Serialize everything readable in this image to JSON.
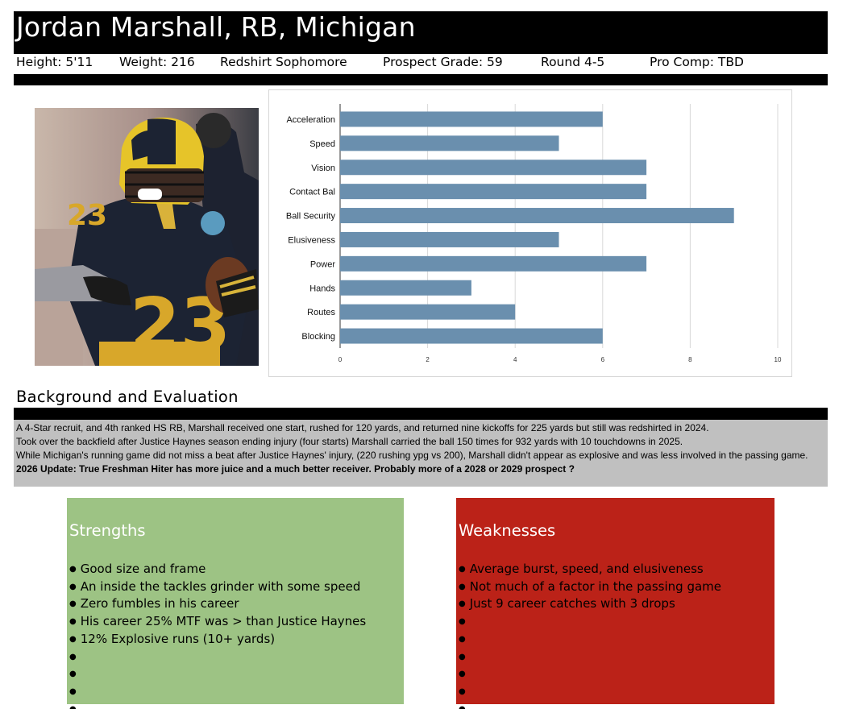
{
  "header": {
    "title": "Jordan Marshall, RB, Michigan",
    "height": "Height: 5'11",
    "weight": "Weight: 216",
    "class_year": "Redshirt Sophomore",
    "prospect_grade": "Prospect Grade: 59",
    "round": "Round 4-5",
    "pro_comp": "Pro Comp: TBD"
  },
  "colors": {
    "bar": "#6a8fae",
    "strengths_bg": "#9dc384",
    "weaknesses_bg": "#bb2218",
    "background_box": "#c0c0c0"
  },
  "chart_data": {
    "type": "bar",
    "orientation": "horizontal",
    "categories": [
      "Acceleration",
      "Speed",
      "Vision",
      "Contact Bal",
      "Ball Security",
      "Elusiveness",
      "Power",
      "Hands",
      "Routes",
      "Blocking"
    ],
    "values": [
      6,
      5,
      7,
      7,
      9,
      5,
      7,
      3,
      4,
      6
    ],
    "xlim": [
      0,
      10
    ],
    "xticks": [
      0,
      2,
      4,
      6,
      8,
      10
    ],
    "grid": true,
    "title": "",
    "xlabel": "",
    "ylabel": ""
  },
  "background": {
    "heading": "Background and Evaluation",
    "paragraphs": [
      "A 4-Star recruit, and 4th ranked HS RB, Marshall received one start, rushed for 120 yards, and returned nine kickoffs for 225 yards but still was redshirted in 2024.",
      "Took over the backfield after Justice Haynes season ending injury (four starts) Marshall carried the ball 150 times for 932 yards with 10 touchdowns in 2025.",
      "While Michigan's running game did not miss a beat after Justice Haynes' injury, (220 rushing ypg vs 200), Marshall didn't appear as explosive and was less involved in the passing game."
    ],
    "update": "2026 Update: True Freshman Hiter has more juice and a much better receiver. Probably more of a 2028 or 2029 prospect ?"
  },
  "strengths": {
    "title": "Strengths",
    "items": [
      "Good size and frame",
      "An inside the tackles grinder with some speed",
      "Zero fumbles in his career",
      "His career 25% MTF was > than Justice Haynes",
      "12% Explosive runs (10+ yards)",
      "",
      "",
      "",
      ""
    ]
  },
  "weaknesses": {
    "title": "Weaknesses",
    "items": [
      "Average burst, speed, and elusiveness",
      "Not much of a factor in the passing game",
      "Just 9 career catches with 3 drops",
      "",
      "",
      "",
      "",
      "",
      ""
    ]
  }
}
